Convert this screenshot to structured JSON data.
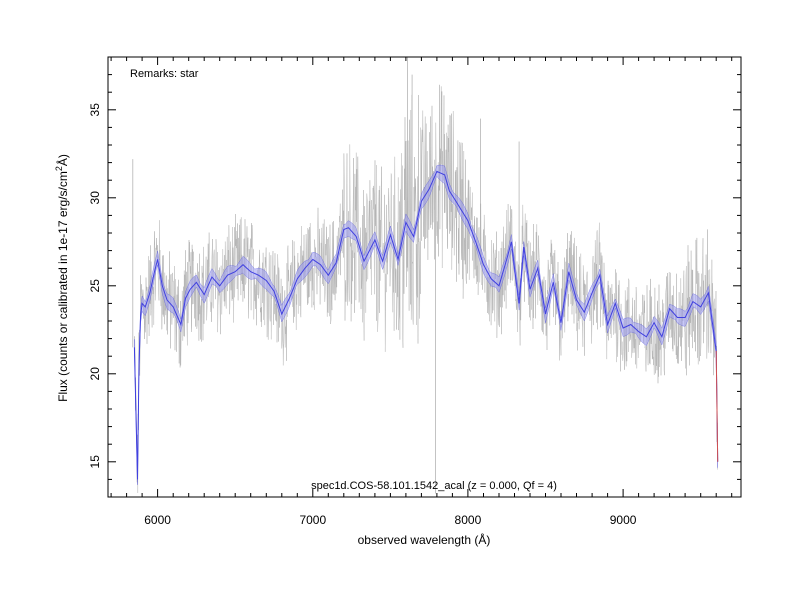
{
  "chart_data": {
    "type": "line",
    "title": "",
    "remarks": "Remarks: star",
    "spectrum_label": "spec1d.COS-58.101.1542_acal (z = 0.000, Qf = 4)",
    "xlabel": "observed wavelength (Å)",
    "ylabel_main": "Flux (counts or calibrated in 1e-17 erg/s/cm",
    "ylabel_sup": "2",
    "ylabel_tail": "Å)",
    "xlim": [
      5680,
      9760
    ],
    "ylim": [
      13,
      38
    ],
    "xticks": [
      6000,
      7000,
      8000,
      9000
    ],
    "yticks": [
      15,
      20,
      25,
      30,
      35
    ],
    "x_minor_step": 100,
    "y_minor_step": 1,
    "grid": false,
    "legend": "none",
    "colors": {
      "raw": "#b4b4b4",
      "smoothed": "#4040e0",
      "band": "#9a9af0",
      "edge": "#d05050"
    },
    "series": [
      {
        "role": "raw",
        "noise_amplitude": 2.6,
        "spikes": [
          [
            7610,
            38
          ],
          [
            7640,
            37
          ],
          [
            7790,
            13.2
          ],
          [
            7870,
            33.5
          ],
          [
            8080,
            34.5
          ],
          [
            8330,
            33.2
          ],
          [
            5840,
            32.2
          ]
        ]
      },
      {
        "role": "smoothed",
        "x": [
          5850,
          5870,
          5880,
          5890,
          5900,
          5920,
          5950,
          5980,
          6000,
          6030,
          6060,
          6100,
          6150,
          6180,
          6210,
          6250,
          6300,
          6350,
          6400,
          6450,
          6500,
          6550,
          6600,
          6650,
          6700,
          6750,
          6800,
          6850,
          6900,
          6950,
          7000,
          7050,
          7100,
          7150,
          7200,
          7230,
          7280,
          7330,
          7400,
          7450,
          7500,
          7550,
          7600,
          7650,
          7700,
          7750,
          7800,
          7850,
          7880,
          7930,
          8000,
          8050,
          8100,
          8150,
          8200,
          8250,
          8280,
          8300,
          8330,
          8360,
          8400,
          8450,
          8500,
          8550,
          8600,
          8650,
          8700,
          8750,
          8800,
          8850,
          8900,
          8950,
          9000,
          9050,
          9100,
          9150,
          9200,
          9250,
          9300,
          9350,
          9400,
          9450,
          9500,
          9550,
          9580,
          9600,
          9610
        ],
        "y": [
          21.5,
          14.0,
          20.5,
          23.3,
          24.0,
          23.8,
          24.6,
          25.8,
          26.5,
          25.0,
          24.2,
          23.8,
          22.8,
          24.3,
          24.8,
          25.2,
          24.5,
          25.5,
          25.0,
          25.6,
          25.8,
          26.2,
          25.8,
          25.6,
          25.3,
          24.7,
          23.4,
          24.3,
          25.4,
          26.0,
          26.5,
          26.2,
          25.6,
          26.3,
          28.2,
          28.3,
          27.8,
          26.4,
          27.6,
          26.4,
          27.9,
          26.5,
          28.6,
          27.8,
          29.8,
          30.5,
          31.5,
          31.3,
          30.4,
          29.7,
          28.7,
          27.5,
          26.2,
          25.4,
          25.0,
          26.5,
          27.5,
          26.0,
          24.0,
          27.2,
          24.8,
          26.0,
          23.4,
          25.2,
          22.9,
          25.8,
          24.2,
          23.5,
          24.6,
          25.6,
          22.8,
          24.0,
          22.6,
          22.8,
          22.4,
          22.1,
          22.9,
          22.1,
          23.7,
          23.2,
          23.2,
          24.1,
          23.8,
          24.6,
          22.6,
          21.3,
          15.0
        ]
      }
    ]
  }
}
